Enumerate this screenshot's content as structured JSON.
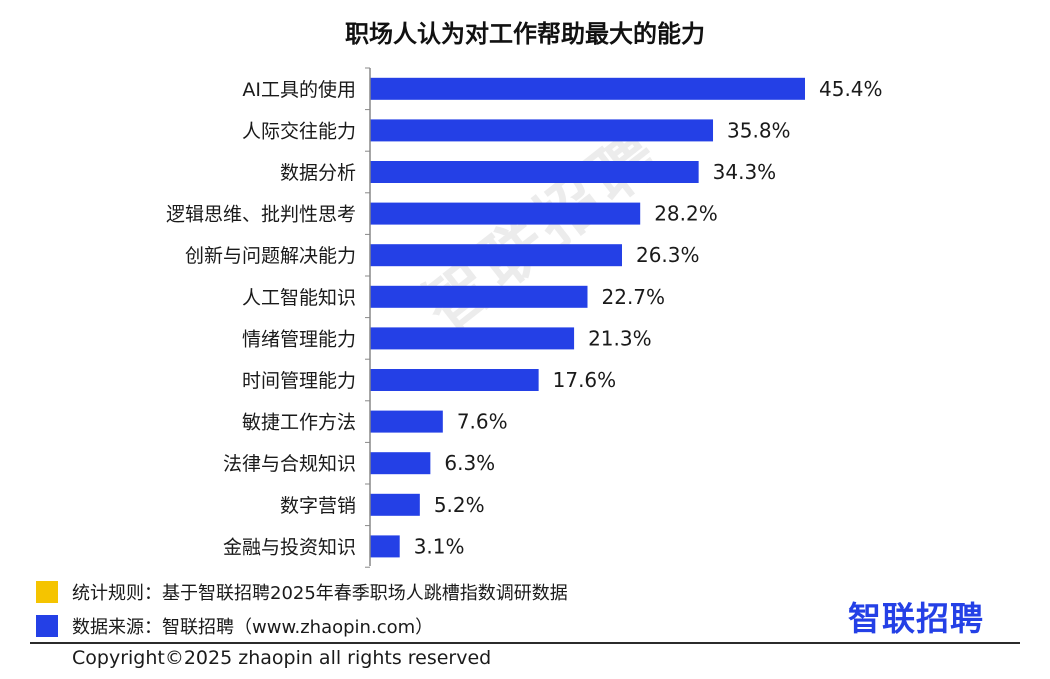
{
  "colors": {
    "bar": "#2440e6",
    "legend_rule": "#f5c400",
    "legend_source": "#2440e6",
    "logo": "#2440e6"
  },
  "chart_data": {
    "type": "bar",
    "orientation": "horizontal",
    "title": "职场人认为对工作帮助最大的能力",
    "categories": [
      "AI工具的使用",
      "人际交往能力",
      "数据分析",
      "逻辑思维、批判性思考",
      "创新与问题解决能力",
      "人工智能知识",
      "情绪管理能力",
      "时间管理能力",
      "敏捷工作方法",
      "法律与合规知识",
      "数字营销",
      "金融与投资知识"
    ],
    "values": [
      45.4,
      35.8,
      34.3,
      28.2,
      26.3,
      22.7,
      21.3,
      17.6,
      7.6,
      6.3,
      5.2,
      3.1
    ],
    "value_labels": [
      "45.4%",
      "35.8%",
      "34.3%",
      "28.2%",
      "26.3%",
      "22.7%",
      "21.3%",
      "17.6%",
      "7.6%",
      "6.3%",
      "5.2%",
      "3.1%"
    ],
    "unit": "%",
    "xlim": [
      0,
      50
    ],
    "grid": false
  },
  "watermark": "智联招聘",
  "legend": {
    "rule": "统计规则：基于智联招聘2025年春季职场人跳槽指数调研数据",
    "source": "数据来源：智联招聘（www.zhaopin.com）"
  },
  "logo_text": "智联招聘",
  "copyright": "Copyright©2025 zhaopin all rights reserved"
}
